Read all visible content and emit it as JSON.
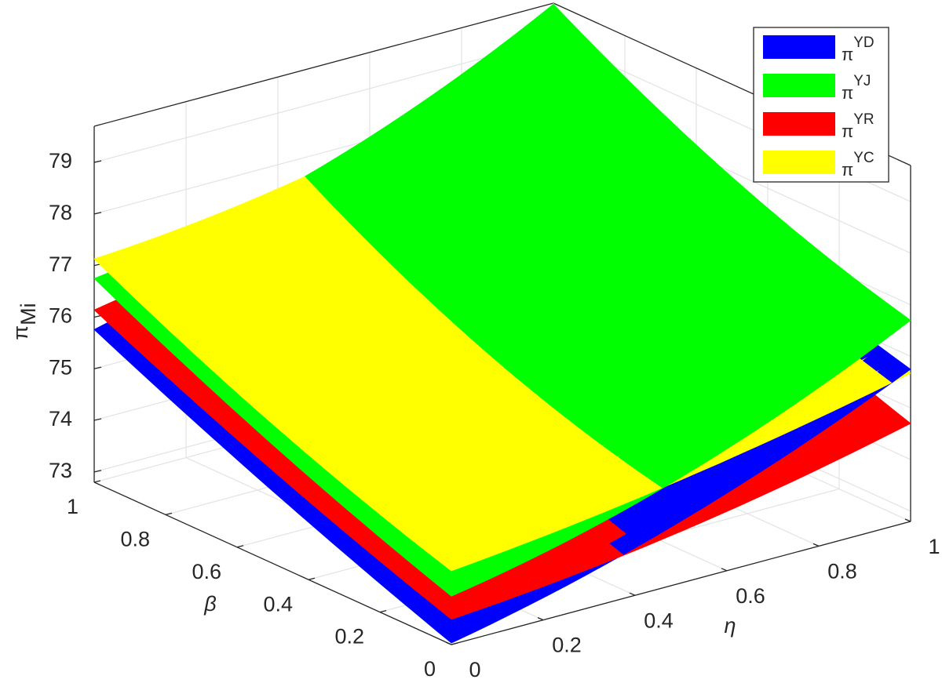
{
  "chart_data": {
    "type": "surface3d",
    "symbol": "π",
    "xlabel": "η",
    "ylabel": "β",
    "zlabel": "π",
    "zlabel_sub": "Mi",
    "x": [
      0,
      0.5,
      1
    ],
    "y": [
      0,
      0.5,
      1
    ],
    "xlim": [
      0,
      1
    ],
    "ylim": [
      0,
      1
    ],
    "zlim": [
      72.8,
      79.7
    ],
    "xticks": [
      0,
      0.2,
      0.4,
      0.6,
      0.8,
      1
    ],
    "yticks": [
      0,
      0.2,
      0.4,
      0.6,
      0.8,
      1
    ],
    "zticks": [
      73,
      74,
      75,
      76,
      77,
      78,
      79
    ],
    "grid": true,
    "legend": "upper right",
    "series": [
      {
        "name": "YD",
        "color": "#0000ff",
        "z": [
          [
            72.83,
            74.0,
            75.75
          ],
          [
            74.2,
            75.1,
            76.9
          ],
          [
            75.76,
            77.0,
            78.5
          ]
        ]
      },
      {
        "name": "YJ",
        "color": "#00ff00",
        "z": [
          [
            73.74,
            74.85,
            76.7
          ],
          [
            75.1,
            75.95,
            77.9
          ],
          [
            76.75,
            77.75,
            79.68
          ]
        ]
      },
      {
        "name": "YR",
        "color": "#ff0000",
        "z": [
          [
            73.29,
            73.8,
            74.7
          ],
          [
            74.6,
            75.2,
            76.1
          ],
          [
            76.14,
            77.0,
            78.0
          ]
        ]
      },
      {
        "name": "YC",
        "color": "#ffff00",
        "z": [
          [
            74.23,
            74.8,
            75.67
          ],
          [
            75.5,
            75.9,
            77.0
          ],
          [
            77.13,
            77.7,
            78.9
          ]
        ]
      }
    ]
  }
}
